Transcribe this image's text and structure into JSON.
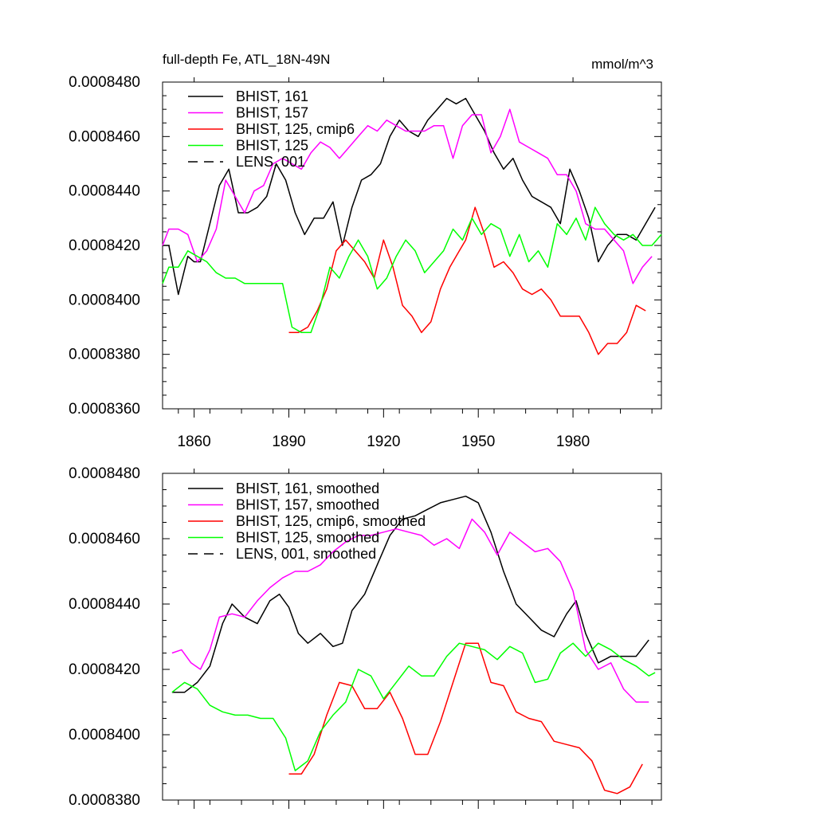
{
  "chart_data": [
    {
      "type": "line",
      "title": "full-depth Fe, ATL_18N-49N",
      "units": "mmol/m^3",
      "xlim": [
        1850,
        2008
      ],
      "ylim": [
        0.000836,
        0.000848
      ],
      "x_ticks": [
        1860,
        1890,
        1920,
        1950,
        1980
      ],
      "x_tick_labels": [
        "1860",
        "1890",
        "1920",
        "1950",
        "1980"
      ],
      "y_ticks": [
        0.000836,
        0.000838,
        0.00084,
        0.000842,
        0.000844,
        0.000846,
        0.000848
      ],
      "y_tick_labels": [
        "0.0008360",
        "0.0008380",
        "0.0008400",
        "0.0008420",
        "0.0008440",
        "0.0008460",
        "0.0008480"
      ],
      "grid": false,
      "legend_position": "top-left",
      "series": [
        {
          "name": "BHIST, 161",
          "color": "#000000",
          "dash": "solid",
          "x": [
            1850,
            1852,
            1855,
            1858,
            1860,
            1862,
            1865,
            1868,
            1871,
            1874,
            1877,
            1880,
            1883,
            1886,
            1889,
            1892,
            1895,
            1898,
            1901,
            1904,
            1907,
            1910,
            1913,
            1916,
            1919,
            1922,
            1925,
            1928,
            1931,
            1934,
            1937,
            1940,
            1943,
            1946,
            1949,
            1952,
            1955,
            1958,
            1961,
            1964,
            1967,
            1970,
            1973,
            1976,
            1979,
            1982,
            1985,
            1988,
            1991,
            1994,
            1997,
            2000,
            2003,
            2006
          ],
          "y": [
            0.000842,
            0.000842,
            0.0008402,
            0.0008416,
            0.0008414,
            0.0008414,
            0.0008428,
            0.0008442,
            0.0008448,
            0.0008432,
            0.0008432,
            0.0008434,
            0.0008438,
            0.000845,
            0.0008444,
            0.0008432,
            0.0008424,
            0.000843,
            0.000843,
            0.0008436,
            0.000842,
            0.0008434,
            0.0008444,
            0.0008446,
            0.000845,
            0.000846,
            0.0008466,
            0.0008462,
            0.000846,
            0.0008466,
            0.000847,
            0.0008474,
            0.0008472,
            0.0008474,
            0.0008468,
            0.0008462,
            0.0008454,
            0.0008448,
            0.0008452,
            0.0008444,
            0.0008438,
            0.0008436,
            0.0008434,
            0.0008428,
            0.0008448,
            0.000844,
            0.000843,
            0.0008414,
            0.000842,
            0.0008424,
            0.0008424,
            0.0008422,
            0.0008428,
            0.0008434
          ]
        },
        {
          "name": "BHIST, 157",
          "color": "#ff00ff",
          "dash": "solid",
          "x": [
            1850,
            1852,
            1855,
            1858,
            1861,
            1864,
            1867,
            1870,
            1873,
            1876,
            1879,
            1882,
            1885,
            1888,
            1891,
            1894,
            1897,
            1900,
            1903,
            1906,
            1909,
            1912,
            1915,
            1918,
            1921,
            1924,
            1927,
            1930,
            1933,
            1936,
            1939,
            1942,
            1945,
            1948,
            1951,
            1954,
            1957,
            1960,
            1963,
            1966,
            1969,
            1972,
            1975,
            1978,
            1981,
            1984,
            1987,
            1990,
            1993,
            1996,
            1999,
            2002,
            2005
          ],
          "y": [
            0.000842,
            0.0008426,
            0.0008426,
            0.0008424,
            0.0008414,
            0.0008418,
            0.0008426,
            0.0008444,
            0.0008438,
            0.0008432,
            0.000844,
            0.0008442,
            0.000845,
            0.0008452,
            0.000845,
            0.0008448,
            0.0008454,
            0.0008458,
            0.0008456,
            0.0008452,
            0.0008456,
            0.000846,
            0.0008464,
            0.0008462,
            0.0008466,
            0.0008464,
            0.0008462,
            0.0008462,
            0.0008462,
            0.0008464,
            0.0008464,
            0.0008452,
            0.0008464,
            0.0008468,
            0.0008468,
            0.0008454,
            0.000846,
            0.000847,
            0.0008458,
            0.0008456,
            0.0008454,
            0.0008452,
            0.0008446,
            0.0008446,
            0.000844,
            0.0008428,
            0.0008426,
            0.0008426,
            0.0008422,
            0.0008418,
            0.0008406,
            0.0008412,
            0.0008416
          ]
        },
        {
          "name": "BHIST, 125, cmip6",
          "color": "#ff0000",
          "dash": "solid",
          "x": [
            1890,
            1893,
            1896,
            1899,
            1902,
            1905,
            1908,
            1911,
            1914,
            1917,
            1920,
            1923,
            1926,
            1929,
            1932,
            1935,
            1938,
            1941,
            1944,
            1946,
            1949,
            1952,
            1955,
            1958,
            1961,
            1964,
            1967,
            1970,
            1973,
            1976,
            1979,
            1982,
            1985,
            1988,
            1991,
            1994,
            1997,
            2000,
            2003
          ],
          "y": [
            0.0008388,
            0.0008388,
            0.000839,
            0.0008396,
            0.0008404,
            0.0008418,
            0.0008422,
            0.0008418,
            0.0008414,
            0.0008408,
            0.0008422,
            0.0008412,
            0.0008398,
            0.0008394,
            0.0008388,
            0.0008392,
            0.0008404,
            0.0008412,
            0.0008418,
            0.0008422,
            0.0008434,
            0.0008424,
            0.0008412,
            0.0008414,
            0.000841,
            0.0008404,
            0.0008402,
            0.0008404,
            0.00084,
            0.0008394,
            0.0008394,
            0.0008394,
            0.0008388,
            0.000838,
            0.0008384,
            0.0008384,
            0.0008388,
            0.0008398,
            0.0008396
          ]
        },
        {
          "name": "BHIST, 125",
          "color": "#00ff00",
          "dash": "solid",
          "x": [
            1850,
            1852,
            1855,
            1858,
            1861,
            1864,
            1867,
            1870,
            1873,
            1876,
            1879,
            1882,
            1885,
            1888,
            1891,
            1894,
            1897,
            1900,
            1903,
            1906,
            1909,
            1912,
            1915,
            1918,
            1921,
            1924,
            1927,
            1930,
            1933,
            1936,
            1939,
            1942,
            1945,
            1948,
            1951,
            1954,
            1957,
            1960,
            1963,
            1966,
            1969,
            1972,
            1975,
            1978,
            1981,
            1984,
            1987,
            1990,
            1993,
            1996,
            1999,
            2002,
            2005,
            2008
          ],
          "y": [
            0.0008406,
            0.0008412,
            0.0008412,
            0.0008418,
            0.0008416,
            0.0008414,
            0.000841,
            0.0008408,
            0.0008408,
            0.0008406,
            0.0008406,
            0.0008406,
            0.0008406,
            0.0008406,
            0.000839,
            0.0008388,
            0.0008388,
            0.0008398,
            0.0008412,
            0.0008408,
            0.0008416,
            0.0008422,
            0.0008416,
            0.0008404,
            0.0008408,
            0.0008416,
            0.0008422,
            0.0008418,
            0.000841,
            0.0008414,
            0.0008418,
            0.0008426,
            0.0008422,
            0.000843,
            0.0008424,
            0.0008428,
            0.0008426,
            0.0008416,
            0.0008424,
            0.0008414,
            0.0008418,
            0.0008412,
            0.0008428,
            0.0008424,
            0.000843,
            0.0008422,
            0.0008434,
            0.0008428,
            0.0008424,
            0.0008422,
            0.0008424,
            0.000842,
            0.000842,
            0.0008424
          ]
        },
        {
          "name": "LENS, 001",
          "color": "#000000",
          "dash": "dashed",
          "x": [],
          "y": []
        }
      ]
    },
    {
      "type": "line",
      "title": "",
      "units": "",
      "xlim": [
        1850,
        2008
      ],
      "ylim": [
        0.000838,
        0.000848
      ],
      "x_ticks": [
        1860,
        1890,
        1920,
        1950,
        1980
      ],
      "x_tick_labels": [],
      "y_ticks": [
        0.000838,
        0.00084,
        0.000842,
        0.000844,
        0.000846,
        0.000848
      ],
      "y_tick_labels": [
        "0.0008380",
        "0.0008400",
        "0.0008420",
        "0.0008440",
        "0.0008460",
        "0.0008480"
      ],
      "grid": false,
      "legend_position": "top-left",
      "series": [
        {
          "name": "BHIST, 161, smoothed",
          "color": "#000000",
          "dash": "solid",
          "x": [
            1853,
            1857,
            1861,
            1865,
            1869,
            1872,
            1876,
            1880,
            1884,
            1887,
            1890,
            1893,
            1896,
            1900,
            1904,
            1907,
            1910,
            1914,
            1918,
            1922,
            1926,
            1930,
            1934,
            1938,
            1942,
            1946,
            1950,
            1954,
            1958,
            1962,
            1966,
            1970,
            1974,
            1978,
            1981,
            1984,
            1988,
            1992,
            1996,
            2000,
            2004
          ],
          "y": [
            0.0008413,
            0.0008413,
            0.0008416,
            0.0008421,
            0.0008434,
            0.000844,
            0.0008436,
            0.0008434,
            0.0008441,
            0.0008443,
            0.0008439,
            0.0008431,
            0.0008428,
            0.0008431,
            0.0008427,
            0.0008428,
            0.0008438,
            0.0008443,
            0.0008452,
            0.0008461,
            0.0008466,
            0.0008467,
            0.0008469,
            0.0008471,
            0.0008472,
            0.0008473,
            0.0008471,
            0.0008462,
            0.000845,
            0.000844,
            0.0008436,
            0.0008432,
            0.000843,
            0.0008437,
            0.0008441,
            0.0008431,
            0.0008422,
            0.0008424,
            0.0008424,
            0.0008424,
            0.0008429
          ]
        },
        {
          "name": "BHIST, 157, smoothed",
          "color": "#ff00ff",
          "dash": "solid",
          "x": [
            1853,
            1856,
            1859,
            1862,
            1865,
            1868,
            1872,
            1876,
            1880,
            1884,
            1888,
            1892,
            1896,
            1900,
            1904,
            1908,
            1912,
            1916,
            1920,
            1924,
            1928,
            1932,
            1936,
            1940,
            1944,
            1948,
            1952,
            1956,
            1960,
            1964,
            1968,
            1972,
            1976,
            1980,
            1984,
            1988,
            1992,
            1996,
            2000,
            2004
          ],
          "y": [
            0.0008425,
            0.0008426,
            0.0008422,
            0.000842,
            0.0008426,
            0.0008436,
            0.0008437,
            0.0008436,
            0.0008441,
            0.0008445,
            0.0008448,
            0.000845,
            0.000845,
            0.0008452,
            0.0008456,
            0.0008459,
            0.0008461,
            0.0008461,
            0.0008462,
            0.0008463,
            0.0008462,
            0.0008461,
            0.0008458,
            0.000846,
            0.0008457,
            0.0008466,
            0.0008462,
            0.0008455,
            0.0008462,
            0.0008459,
            0.0008456,
            0.0008457,
            0.0008453,
            0.0008444,
            0.0008426,
            0.000842,
            0.0008422,
            0.0008414,
            0.000841,
            0.000841
          ]
        },
        {
          "name": "BHIST, 125, cmip6, smoothed",
          "color": "#ff0000",
          "dash": "solid",
          "x": [
            1890,
            1894,
            1898,
            1902,
            1906,
            1910,
            1914,
            1918,
            1922,
            1926,
            1930,
            1934,
            1938,
            1942,
            1946,
            1950,
            1954,
            1958,
            1962,
            1966,
            1970,
            1974,
            1978,
            1982,
            1986,
            1990,
            1994,
            1998,
            2002
          ],
          "y": [
            0.0008388,
            0.0008388,
            0.0008394,
            0.0008406,
            0.0008416,
            0.0008415,
            0.0008408,
            0.0008408,
            0.0008413,
            0.0008405,
            0.0008394,
            0.0008394,
            0.0008404,
            0.0008416,
            0.0008428,
            0.0008428,
            0.0008416,
            0.0008415,
            0.0008407,
            0.0008405,
            0.0008404,
            0.0008398,
            0.0008397,
            0.0008396,
            0.0008392,
            0.0008383,
            0.0008382,
            0.0008384,
            0.0008391
          ]
        },
        {
          "name": "BHIST, 125, smoothed",
          "color": "#00ff00",
          "dash": "solid",
          "x": [
            1853,
            1857,
            1861,
            1865,
            1869,
            1873,
            1877,
            1881,
            1885,
            1889,
            1892,
            1896,
            1900,
            1904,
            1908,
            1912,
            1916,
            1920,
            1924,
            1928,
            1932,
            1936,
            1940,
            1944,
            1948,
            1952,
            1956,
            1960,
            1964,
            1968,
            1972,
            1976,
            1980,
            1984,
            1988,
            1992,
            1996,
            2000,
            2004,
            2006
          ],
          "y": [
            0.0008413,
            0.0008416,
            0.0008414,
            0.0008409,
            0.0008407,
            0.0008406,
            0.0008406,
            0.0008405,
            0.0008405,
            0.0008399,
            0.0008389,
            0.0008392,
            0.0008401,
            0.0008406,
            0.000841,
            0.000842,
            0.0008418,
            0.0008411,
            0.0008416,
            0.0008421,
            0.0008418,
            0.0008418,
            0.0008424,
            0.0008428,
            0.0008427,
            0.0008426,
            0.0008423,
            0.0008427,
            0.0008425,
            0.0008416,
            0.0008417,
            0.0008425,
            0.0008428,
            0.0008424,
            0.0008428,
            0.0008426,
            0.0008423,
            0.0008421,
            0.0008418,
            0.0008419
          ]
        },
        {
          "name": "LENS, 001, smoothed",
          "color": "#000000",
          "dash": "dashed",
          "x": [],
          "y": []
        }
      ]
    }
  ]
}
